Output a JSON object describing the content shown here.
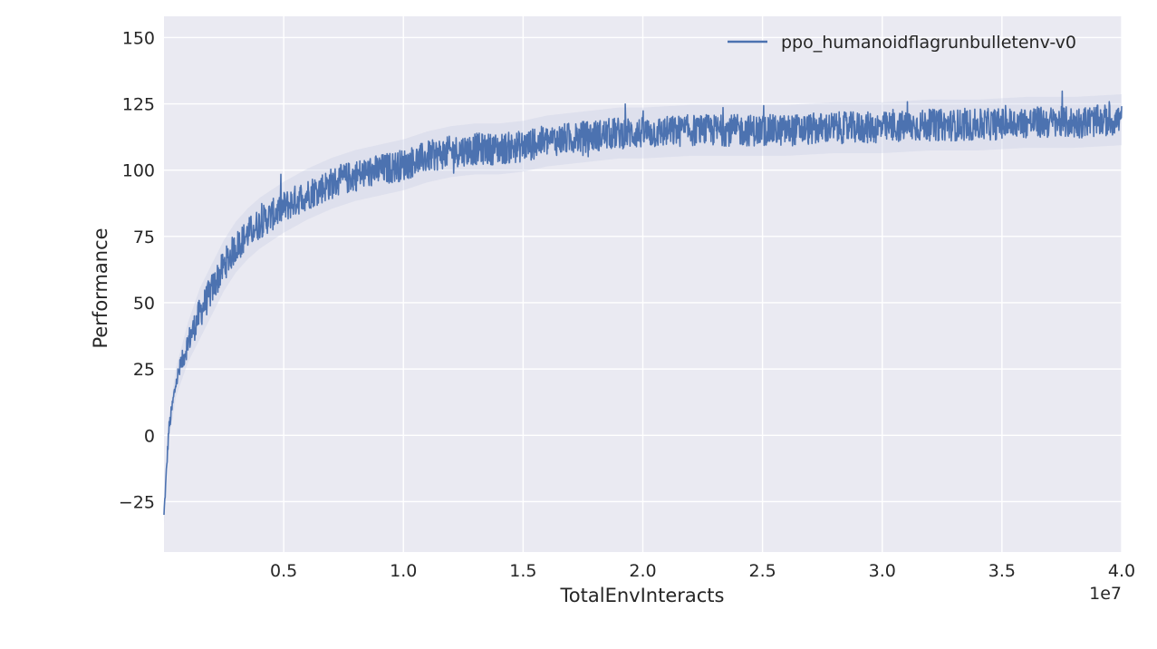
{
  "chart_data": {
    "type": "line",
    "xlabel": "TotalEnvInteracts",
    "ylabel": "Performance",
    "x_offset_label": "1e7",
    "xlim": [
      0,
      40000000
    ],
    "ylim": [
      -44,
      158
    ],
    "x_ticks": [
      5000000,
      10000000,
      15000000,
      20000000,
      25000000,
      30000000,
      35000000,
      40000000
    ],
    "x_tick_labels": [
      "0.5",
      "1.0",
      "1.5",
      "2.0",
      "2.5",
      "3.0",
      "3.5",
      "4.0"
    ],
    "y_ticks": [
      -25,
      0,
      25,
      50,
      75,
      100,
      125,
      150
    ],
    "y_tick_labels": [
      "−25",
      "0",
      "25",
      "50",
      "75",
      "100",
      "125",
      "150"
    ],
    "grid": true,
    "legend_position": "top-right",
    "colors": {
      "line": "#4c72b0",
      "background": "#eaeaf2",
      "grid": "#ffffff",
      "band": "#c8cde6"
    },
    "series": [
      {
        "name": "ppo_humanoidflagrunbulletenv-v0",
        "x": [
          0,
          200000,
          500000,
          1000000,
          1500000,
          2000000,
          2500000,
          3000000,
          3500000,
          4000000,
          5000000,
          6000000,
          7000000,
          8000000,
          9000000,
          10000000,
          11000000,
          12000000,
          13000000,
          14000000,
          15000000,
          16000000,
          17000000,
          18000000,
          19000000,
          20000000,
          22000000,
          24000000,
          26000000,
          28000000,
          30000000,
          32000000,
          34000000,
          36000000,
          38000000,
          40000000
        ],
        "y": [
          -30,
          2,
          20,
          35,
          46,
          55,
          64,
          71,
          76,
          80,
          86,
          91,
          95,
          98,
          100,
          102,
          105,
          107,
          108,
          108,
          109,
          111,
          112,
          113,
          114,
          114,
          115,
          115,
          115,
          116,
          116,
          117,
          117,
          118,
          118,
          119
        ],
        "noise_amplitude": 6,
        "peak_max": 137,
        "trough_min": 94
      }
    ]
  }
}
